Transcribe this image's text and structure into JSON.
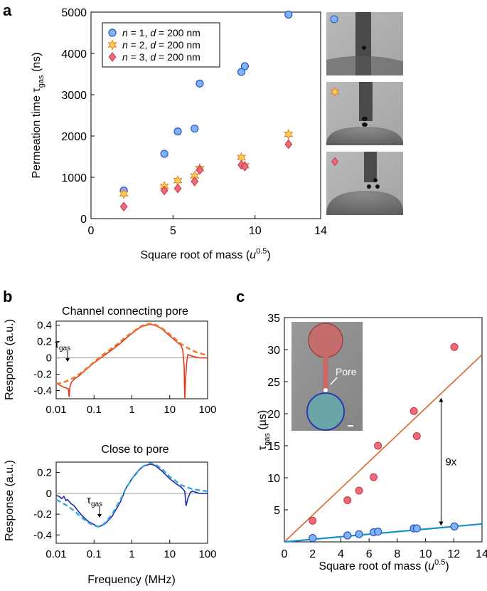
{
  "panel_labels": {
    "a": "a",
    "b": "b",
    "c": "c"
  },
  "colors": {
    "n1_fill": "#7fb2ff",
    "n1_stroke": "#2a55b8",
    "n2_fill": "#ffd24a",
    "n2_stroke": "#e0803a",
    "n3_fill": "#ee6a7a",
    "n3_stroke": "#c03848",
    "orange_line": "#d9692a",
    "blue_line": "#1a8fcc",
    "red_trace": "#e23a1a",
    "orange_fit": "#ec7a2a",
    "blue_trace": "#1a2aa8",
    "blue_fit": "#3aa6dc"
  },
  "chart_data": [
    {
      "id": "a",
      "type": "scatter",
      "xlabel": "Square root of mass (",
      "xlabel_unit": "u",
      "xlabel_exp": "0.5",
      "xlabel_close": ")",
      "ylabel": "Permeation time τ",
      "ylabel_sub": "gas",
      "ylabel_unit": " (ns)",
      "xlim": [
        0,
        14
      ],
      "ylim": [
        0,
        5000
      ],
      "xticks": [
        "0",
        "5",
        "10",
        "14"
      ],
      "xtick_values": [
        0,
        5,
        10,
        14
      ],
      "yticks": [
        "0",
        "1000",
        "2000",
        "3000",
        "4000",
        "5000"
      ],
      "ytick_values": [
        0,
        1000,
        2000,
        3000,
        4000,
        5000
      ],
      "legend_position": "top-left",
      "series": [
        {
          "name": "n = 1, d = 200 nm",
          "n_label": "n",
          "n_val": " = 1, ",
          "d_label": "d",
          "d_val": " = 200 nm",
          "marker": "circle",
          "x": [
            2.0,
            4.47,
            5.29,
            6.32,
            6.63,
            9.17,
            9.38,
            12.04
          ],
          "y": [
            680,
            1570,
            2110,
            2180,
            3270,
            3550,
            3690,
            4940
          ]
        },
        {
          "name": "n = 2, d = 200 nm",
          "n_label": "n",
          "n_val": " = 2, ",
          "d_label": "d",
          "d_val": " = 200 nm",
          "marker": "star",
          "x": [
            2.0,
            4.47,
            5.29,
            6.32,
            6.63,
            9.17,
            9.38,
            12.04
          ],
          "y": [
            600,
            780,
            920,
            1030,
            1210,
            1480,
            1280,
            2040
          ]
        },
        {
          "name": "n = 3, d = 200 nm",
          "n_label": "n",
          "n_val": " = 3, ",
          "d_label": "d",
          "d_val": " = 200 nm",
          "marker": "diamond",
          "x": [
            2.0,
            4.47,
            5.29,
            6.32,
            6.63,
            9.17,
            9.38,
            12.04
          ],
          "y": [
            290,
            680,
            730,
            900,
            1180,
            1300,
            1260,
            1800
          ]
        }
      ]
    },
    {
      "id": "b-top",
      "type": "line",
      "title": "Channel connecting pore",
      "ylabel": "Response (a.u.)",
      "xscale": "log",
      "xlim": [
        0.01,
        100
      ],
      "ylim": [
        -0.5,
        0.45
      ],
      "xticks": [
        "0.01",
        "0.1",
        "1",
        "10",
        "100"
      ],
      "xtick_values": [
        0.01,
        0.1,
        1,
        10,
        100
      ],
      "yticks": [
        "-0.4",
        "-0.2",
        "0",
        "0.2",
        "0.4"
      ],
      "ytick_values": [
        -0.4,
        -0.2,
        0,
        0.2,
        0.4
      ],
      "annotation": {
        "text": "τ",
        "sub": "gas",
        "x": 0.02,
        "y": -0.03
      },
      "series": [
        {
          "kind": "measured",
          "x": [
            0.01,
            0.013,
            0.016,
            0.019,
            0.021,
            0.022,
            0.023,
            0.025,
            0.03,
            0.04,
            0.05,
            0.07,
            0.1,
            0.15,
            0.2,
            0.3,
            0.5,
            0.7,
            1,
            1.5,
            2,
            3,
            4,
            6,
            8,
            10,
            12,
            15,
            18,
            20,
            22,
            24,
            25,
            26,
            28,
            30,
            40,
            60,
            100
          ],
          "y": [
            -0.3,
            -0.34,
            -0.36,
            -0.37,
            -0.38,
            -0.48,
            -0.36,
            -0.3,
            -0.26,
            -0.22,
            -0.18,
            -0.12,
            -0.06,
            0.0,
            0.04,
            0.1,
            0.18,
            0.24,
            0.3,
            0.36,
            0.39,
            0.41,
            0.4,
            0.36,
            0.31,
            0.27,
            0.24,
            0.2,
            0.17,
            0.15,
            0.1,
            -0.1,
            -0.5,
            -0.3,
            -0.05,
            0.04,
            0.02,
            0.0,
            0.0
          ]
        },
        {
          "kind": "fit",
          "x": [
            0.01,
            0.015,
            0.02,
            0.03,
            0.05,
            0.07,
            0.1,
            0.15,
            0.2,
            0.3,
            0.5,
            0.7,
            1,
            1.5,
            2,
            3,
            4,
            6,
            10,
            15,
            20,
            30,
            50,
            100
          ],
          "y": [
            -0.32,
            -0.3,
            -0.28,
            -0.24,
            -0.17,
            -0.11,
            -0.05,
            0.02,
            0.06,
            0.12,
            0.2,
            0.26,
            0.31,
            0.37,
            0.4,
            0.42,
            0.41,
            0.37,
            0.29,
            0.22,
            0.17,
            0.12,
            0.07,
            0.03
          ]
        }
      ]
    },
    {
      "id": "b-bottom",
      "type": "line",
      "title": "Close to pore",
      "ylabel": "Response (a.u.)",
      "xlabel": "Frequency (MHz)",
      "xscale": "log",
      "xlim": [
        0.01,
        100
      ],
      "ylim": [
        -0.48,
        0.3
      ],
      "xticks": [
        "0.01",
        "0.1",
        "1",
        "10",
        "100"
      ],
      "xtick_values": [
        0.01,
        0.1,
        1,
        10,
        100
      ],
      "yticks": [
        "-0.4",
        "-0.2",
        "0",
        "0.2"
      ],
      "ytick_values": [
        -0.4,
        -0.2,
        0,
        0.2
      ],
      "annotation": {
        "text": "τ",
        "sub": "gas",
        "x": 0.14,
        "y": -0.22
      },
      "series": [
        {
          "kind": "measured",
          "x": [
            0.01,
            0.012,
            0.014,
            0.016,
            0.018,
            0.02,
            0.025,
            0.03,
            0.04,
            0.05,
            0.07,
            0.1,
            0.13,
            0.16,
            0.2,
            0.3,
            0.5,
            0.7,
            1,
            1.5,
            2,
            3,
            4,
            6,
            10,
            15,
            20,
            25,
            27,
            30,
            35,
            40,
            60,
            100
          ],
          "y": [
            -0.02,
            -0.03,
            -0.05,
            -0.03,
            -0.07,
            -0.06,
            -0.1,
            -0.12,
            -0.18,
            -0.22,
            -0.27,
            -0.3,
            -0.32,
            -0.31,
            -0.29,
            -0.22,
            -0.08,
            0.05,
            0.14,
            0.22,
            0.26,
            0.28,
            0.27,
            0.22,
            0.14,
            0.09,
            0.06,
            0.02,
            -0.12,
            -0.05,
            0.01,
            0.02,
            0.0,
            0.0
          ]
        },
        {
          "kind": "fit",
          "x": [
            0.01,
            0.02,
            0.03,
            0.05,
            0.07,
            0.1,
            0.13,
            0.16,
            0.2,
            0.3,
            0.5,
            0.7,
            1,
            1.5,
            2,
            3,
            4,
            6,
            10,
            20,
            40,
            100
          ],
          "y": [
            -0.06,
            -0.12,
            -0.17,
            -0.24,
            -0.28,
            -0.31,
            -0.32,
            -0.31,
            -0.28,
            -0.2,
            -0.06,
            0.05,
            0.14,
            0.22,
            0.26,
            0.29,
            0.28,
            0.24,
            0.16,
            0.08,
            0.04,
            0.02
          ]
        }
      ]
    },
    {
      "id": "c",
      "type": "scatter",
      "ylabel": "τ",
      "ylabel_sub": "gas",
      "ylabel_unit": " (µs)",
      "xlabel": "Square root of mass (",
      "xlabel_unit": "u",
      "xlabel_exp": "0.5",
      "xlabel_close": ")",
      "xlim": [
        0,
        14
      ],
      "ylim": [
        0,
        35
      ],
      "xticks": [
        "0",
        "2",
        "4",
        "6",
        "8",
        "10",
        "12",
        "14"
      ],
      "xtick_values": [
        0,
        2,
        4,
        6,
        8,
        10,
        12,
        14
      ],
      "yticks": [
        "5",
        "10",
        "15",
        "20",
        "25",
        "30",
        "35"
      ],
      "ytick_values": [
        5,
        10,
        15,
        20,
        25,
        30,
        35
      ],
      "annotation_ratio": {
        "text": "9x",
        "x": 11.1,
        "y_top": 22.5,
        "y_bottom": 2.5
      },
      "inset_label": "Pore",
      "series": [
        {
          "marker": "circle-red",
          "x": [
            2.0,
            4.47,
            5.29,
            6.32,
            6.63,
            9.17,
            9.38,
            12.04
          ],
          "y": [
            3.3,
            6.5,
            8.0,
            10.1,
            15.0,
            20.4,
            16.5,
            30.4
          ]
        },
        {
          "marker": "circle-blue",
          "x": [
            2.0,
            4.47,
            5.29,
            6.32,
            6.63,
            9.17,
            9.38,
            12.04
          ],
          "y": [
            0.6,
            1.0,
            1.2,
            1.5,
            1.6,
            2.1,
            2.1,
            2.4
          ]
        },
        {
          "kind": "fit-orange",
          "x": [
            0,
            14
          ],
          "y": [
            0,
            29.2
          ]
        },
        {
          "kind": "fit-blue",
          "x": [
            0,
            14
          ],
          "y": [
            0,
            2.8
          ]
        }
      ]
    }
  ]
}
